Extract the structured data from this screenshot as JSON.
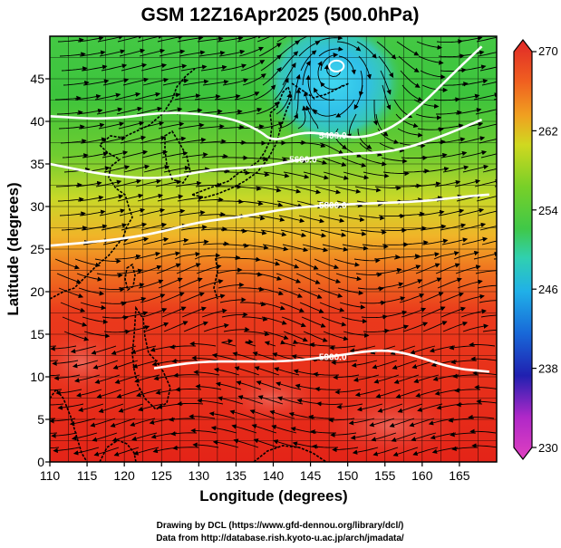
{
  "title": "GSM 12Z16Apr2025 (500.0hPa)",
  "x_axis": {
    "label": "Longitude (degrees)",
    "range": [
      110,
      170
    ],
    "ticks": [
      "110",
      "115",
      "120",
      "125",
      "130",
      "135",
      "140",
      "145",
      "150",
      "155",
      "160",
      "165"
    ]
  },
  "y_axis": {
    "label": "Latitude  (degrees)",
    "range": [
      0,
      50
    ],
    "ticks": [
      "0",
      "5",
      "10",
      "15",
      "20",
      "25",
      "30",
      "35",
      "40",
      "45"
    ]
  },
  "colorbar": {
    "range": [
      230,
      270
    ],
    "ticks": [
      "230",
      "238",
      "246",
      "254",
      "262",
      "270"
    ],
    "colors": [
      "#e040c0",
      "#9a20c0",
      "#2020b0",
      "#1878e0",
      "#20b8e8",
      "#30d0a0",
      "#40c840",
      "#70d028",
      "#c8d820",
      "#f0a020",
      "#f06820",
      "#e83820",
      "#e02020"
    ]
  },
  "contours": [
    {
      "label": "5400.0",
      "lat_at_lon": [
        [
          110,
          40.6
        ],
        [
          118,
          40.2
        ],
        [
          126,
          41.2
        ],
        [
          134,
          40.5
        ],
        [
          138,
          39.0
        ],
        [
          140,
          37.6
        ],
        [
          144,
          38.8
        ],
        [
          148,
          38.4
        ],
        [
          152,
          38.0
        ],
        [
          156,
          39.2
        ],
        [
          160,
          42.0
        ],
        [
          164,
          45.5
        ],
        [
          168,
          48.8
        ]
      ]
    },
    {
      "label": "5600.0",
      "lat_at_lon": [
        [
          110,
          35.0
        ],
        [
          118,
          33.6
        ],
        [
          125,
          33.2
        ],
        [
          132,
          34.4
        ],
        [
          138,
          34.6
        ],
        [
          144,
          35.6
        ],
        [
          150,
          36.2
        ],
        [
          156,
          36.4
        ],
        [
          162,
          38.0
        ],
        [
          168,
          40.2
        ]
      ]
    },
    {
      "label": "5800.0",
      "lat_at_lon": [
        [
          110,
          25.4
        ],
        [
          118,
          26.0
        ],
        [
          124,
          26.8
        ],
        [
          130,
          28.2
        ],
        [
          136,
          28.8
        ],
        [
          142,
          29.8
        ],
        [
          148,
          30.2
        ],
        [
          154,
          30.4
        ],
        [
          160,
          30.6
        ],
        [
          166,
          31.2
        ],
        [
          169,
          31.4
        ]
      ]
    },
    {
      "label": "5900.0",
      "lat_at_lon": [
        [
          124,
          11.0
        ],
        [
          130,
          11.8
        ],
        [
          136,
          11.8
        ],
        [
          142,
          11.8
        ],
        [
          148,
          12.4
        ],
        [
          154,
          13.2
        ],
        [
          158,
          12.8
        ],
        [
          164,
          11.0
        ],
        [
          169,
          10.6
        ]
      ]
    }
  ],
  "low_center": {
    "lon": 148.5,
    "lat": 46.5
  },
  "credits": [
    "Drawing by DCL (https://www.gfd-dennou.org/library/dcl/)",
    "Data from http://database.rish.kyoto-u.ac.jp/arch/jmadata/"
  ]
}
